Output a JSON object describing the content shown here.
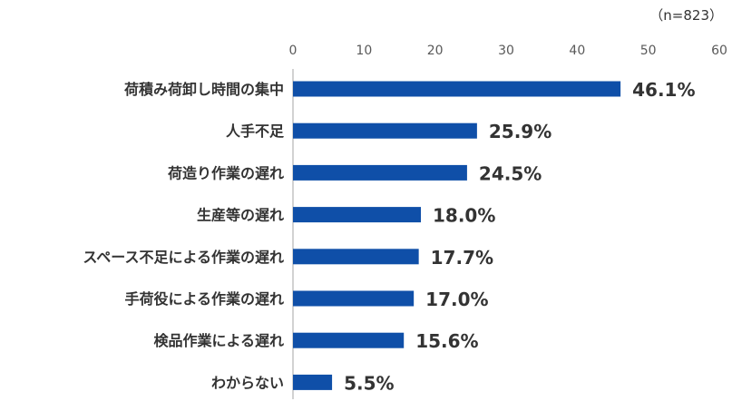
{
  "sample_size": "（n=823）",
  "colors": {
    "bar": "#0f4fa8",
    "axis": "#a6a6a6",
    "text": "#333333"
  },
  "chart_data": {
    "type": "bar",
    "orientation": "horizontal",
    "title": "",
    "xlabel": "",
    "ylabel": "",
    "xlim": [
      0,
      60
    ],
    "x_ticks": [
      0,
      10,
      20,
      30,
      40,
      50,
      60
    ],
    "x_axis_position": "top",
    "grid": false,
    "legend": "none",
    "categories": [
      "荷積み荷卸し時間の集中",
      "人手不足",
      "荷造り作業の遅れ",
      "生産等の遅れ",
      "スペース不足による作業の遅れ",
      "手荷役による作業の遅れ",
      "検品作業による遅れ",
      "わからない"
    ],
    "values": [
      46.1,
      25.9,
      24.5,
      18.0,
      17.7,
      17.0,
      15.6,
      5.5
    ],
    "value_labels": [
      "46.1%",
      "25.9%",
      "24.5%",
      "18.0%",
      "17.7%",
      "17.0%",
      "15.6%",
      "5.5%"
    ]
  }
}
